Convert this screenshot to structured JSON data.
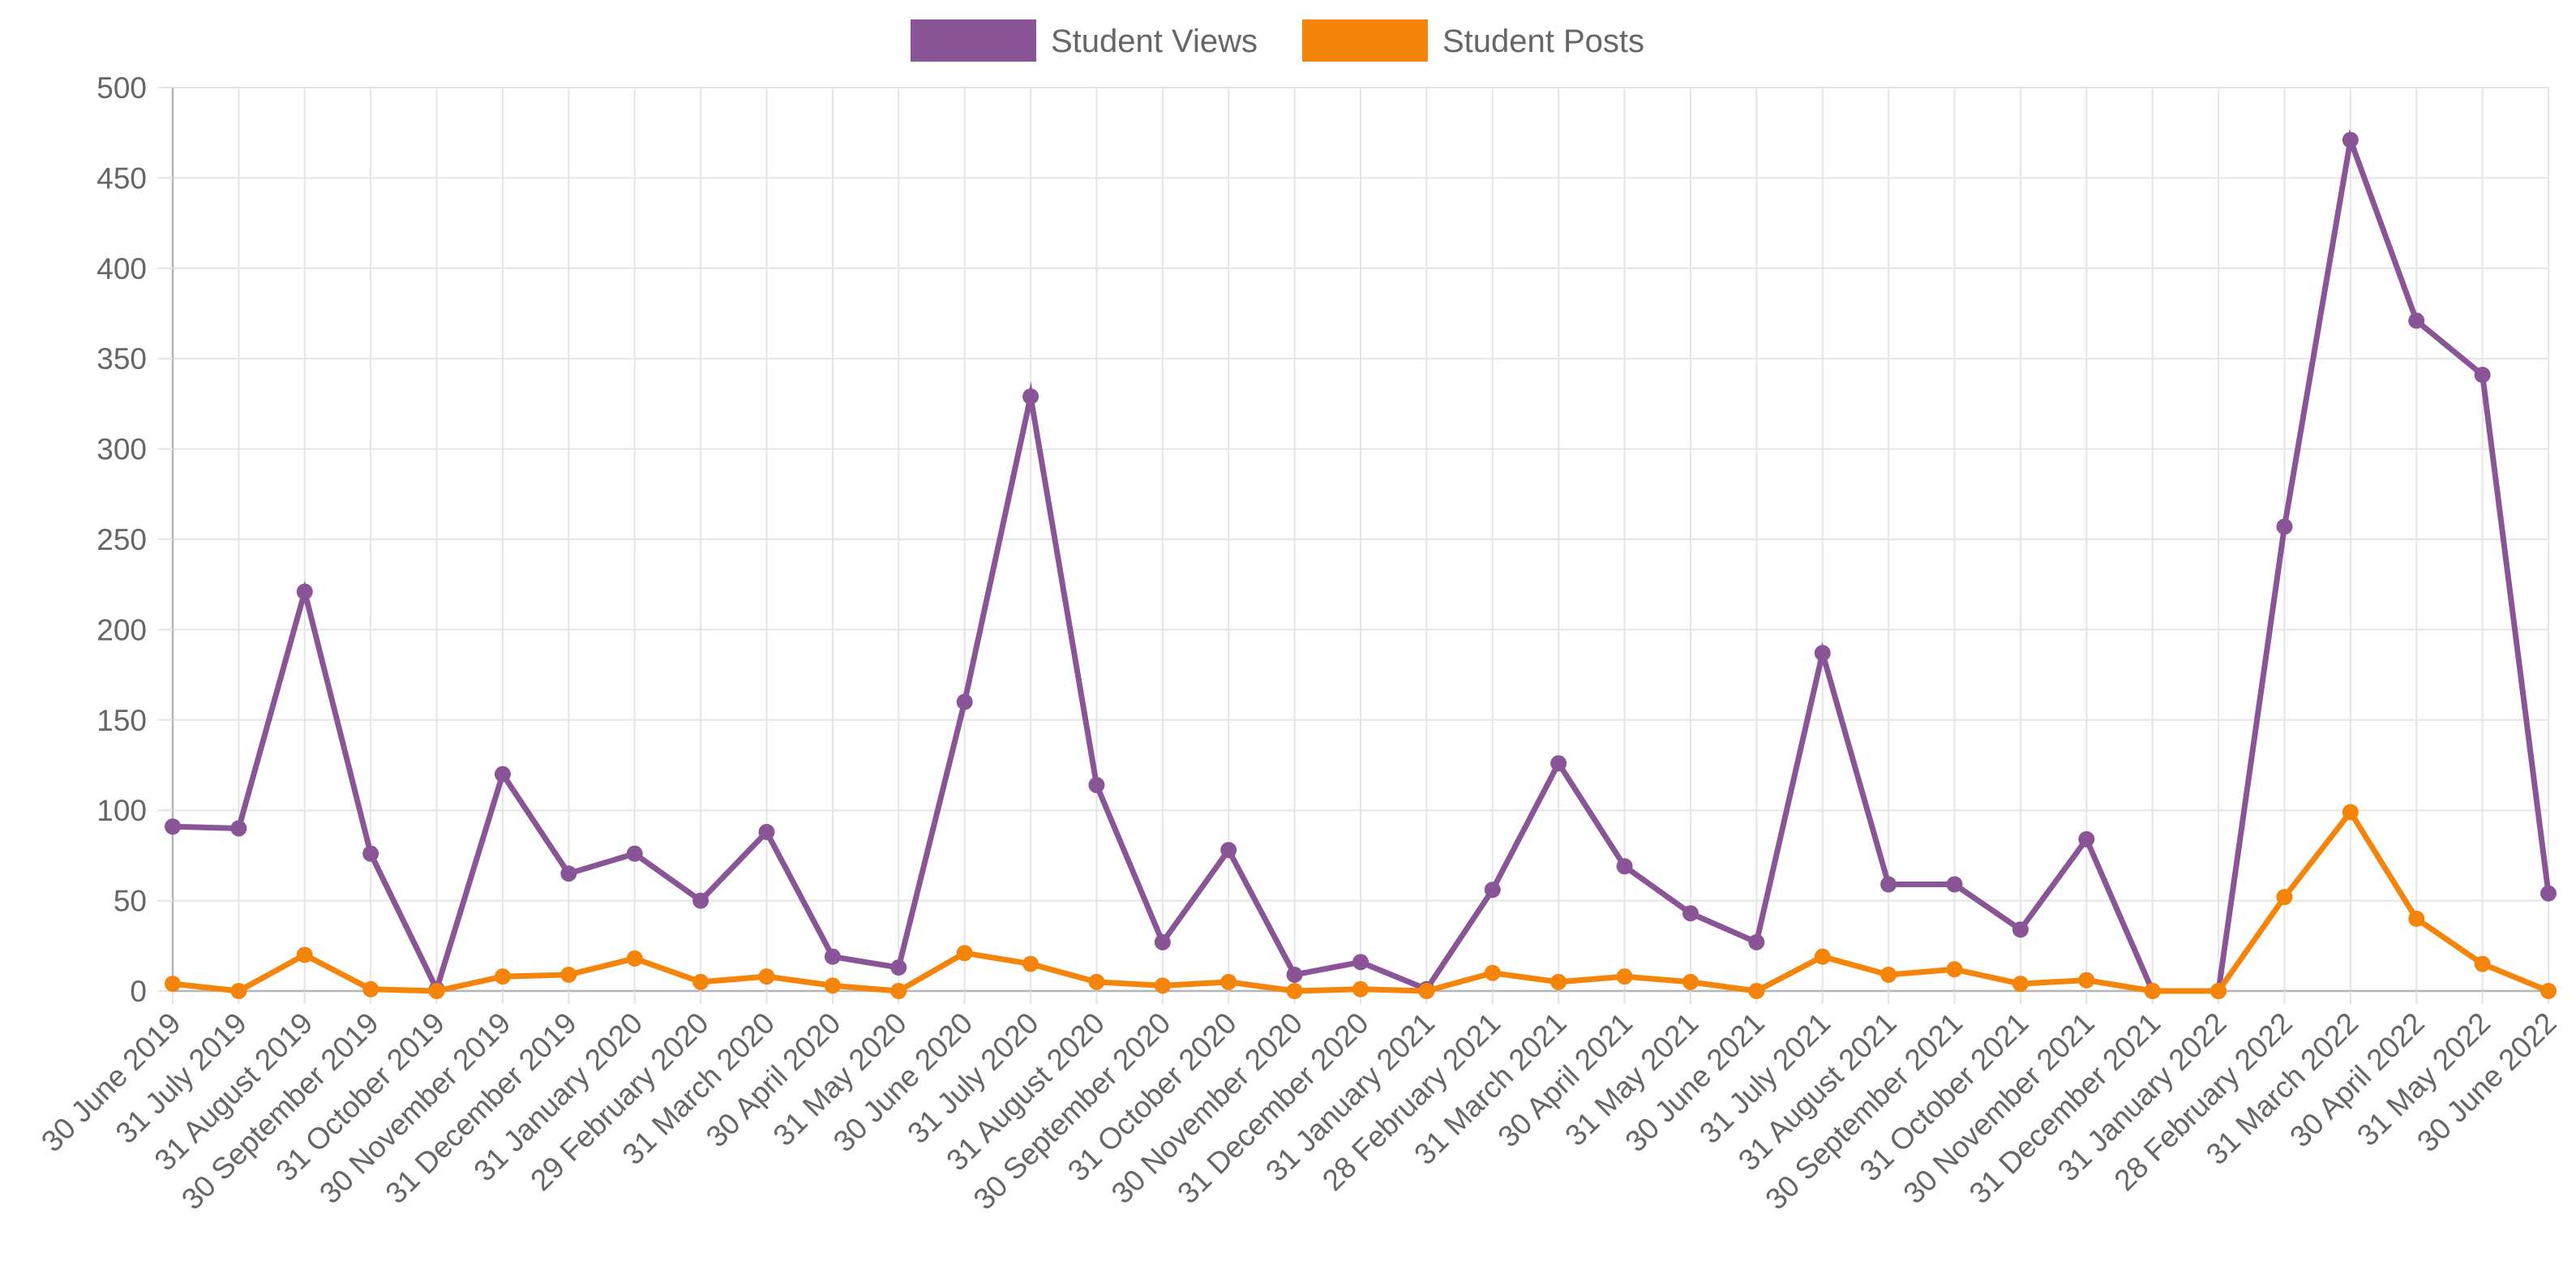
{
  "chart_data": {
    "type": "line",
    "title": "",
    "xlabel": "",
    "ylabel": "",
    "ylim": [
      0,
      500
    ],
    "yticks": [
      0,
      50,
      100,
      150,
      200,
      250,
      300,
      350,
      400,
      450,
      500
    ],
    "grid": true,
    "legend_position": "top-center",
    "categories": [
      "30 June 2019",
      "31 July 2019",
      "31 August 2019",
      "30 September 2019",
      "31 October 2019",
      "30 November 2019",
      "31 December 2019",
      "31 January 2020",
      "29 February 2020",
      "31 March 2020",
      "30 April 2020",
      "31 May 2020",
      "30 June 2020",
      "31 July 2020",
      "31 August 2020",
      "30 September 2020",
      "31 October 2020",
      "30 November 2020",
      "31 December 2020",
      "31 January 2021",
      "28 February 2021",
      "31 March 2021",
      "30 April 2021",
      "31 May 2021",
      "30 June 2021",
      "31 July 2021",
      "31 August 2021",
      "30 September 2021",
      "31 October 2021",
      "30 November 2021",
      "31 December 2021",
      "31 January 2022",
      "28 February 2022",
      "31 March 2022",
      "30 April 2022",
      "31 May 2022",
      "30 June 2022"
    ],
    "series": [
      {
        "name": "Student Views",
        "color": "#8a5596",
        "values": [
          91,
          90,
          221,
          76,
          1,
          120,
          65,
          76,
          50,
          88,
          19,
          13,
          160,
          329,
          114,
          27,
          78,
          9,
          16,
          1,
          56,
          126,
          69,
          43,
          27,
          187,
          59,
          59,
          34,
          84,
          0,
          0,
          257,
          471,
          371,
          341,
          54
        ]
      },
      {
        "name": "Student Posts",
        "color": "#f5850a",
        "values": [
          4,
          0,
          20,
          1,
          0,
          8,
          9,
          18,
          5,
          8,
          3,
          0,
          21,
          15,
          5,
          3,
          5,
          0,
          1,
          0,
          10,
          5,
          8,
          5,
          0,
          19,
          9,
          12,
          4,
          6,
          0,
          0,
          52,
          99,
          40,
          15,
          0
        ]
      }
    ]
  }
}
